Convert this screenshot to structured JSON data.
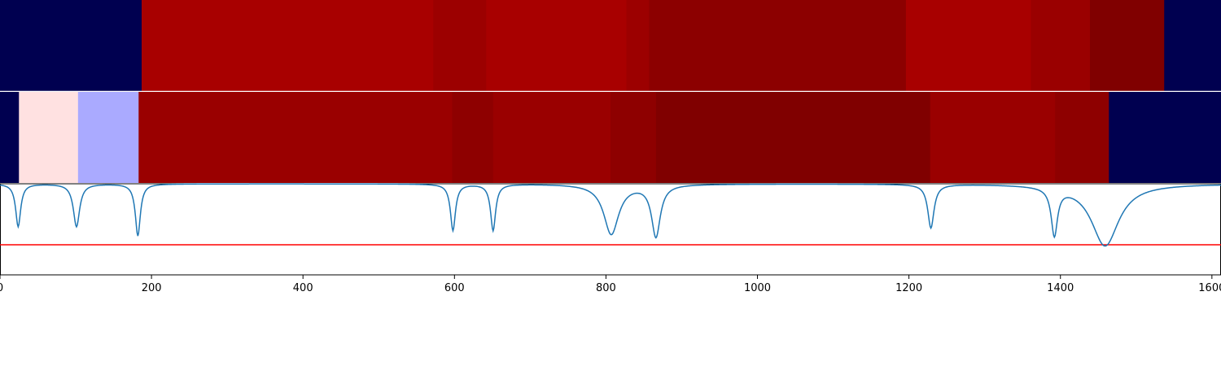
{
  "chart_data": {
    "type": "heatmap",
    "x_range": [
      0,
      1612
    ],
    "x_ticks": [
      0,
      200,
      400,
      600,
      800,
      1000,
      1200,
      1400,
      1600
    ],
    "x_tick_labels": [
      "0",
      "200",
      "400",
      "600",
      "800",
      "1000",
      "1200",
      "1400",
      "1600"
    ],
    "tracks": [
      {
        "name": "segments-top",
        "segments": [
          {
            "start": 0,
            "end": 187,
            "color": "#000050"
          },
          {
            "start": 187,
            "end": 572,
            "color": "#a80000"
          },
          {
            "start": 572,
            "end": 642,
            "color": "#9c0000"
          },
          {
            "start": 642,
            "end": 827,
            "color": "#a80000"
          },
          {
            "start": 827,
            "end": 857,
            "color": "#9c0000"
          },
          {
            "start": 857,
            "end": 1196,
            "color": "#8c0000"
          },
          {
            "start": 1196,
            "end": 1361,
            "color": "#a80000"
          },
          {
            "start": 1361,
            "end": 1439,
            "color": "#9a0000"
          },
          {
            "start": 1439,
            "end": 1537,
            "color": "#800000"
          },
          {
            "start": 1537,
            "end": 1612,
            "color": "#000050"
          }
        ]
      },
      {
        "name": "segments-bottom",
        "segments": [
          {
            "start": 0,
            "end": 25,
            "color": "#000050"
          },
          {
            "start": 25,
            "end": 103,
            "color": "#ffe1e1"
          },
          {
            "start": 103,
            "end": 183,
            "color": "#aaaaff"
          },
          {
            "start": 183,
            "end": 597,
            "color": "#9a0000"
          },
          {
            "start": 597,
            "end": 651,
            "color": "#8e0000"
          },
          {
            "start": 651,
            "end": 806,
            "color": "#9a0000"
          },
          {
            "start": 806,
            "end": 866,
            "color": "#8e0000"
          },
          {
            "start": 866,
            "end": 1228,
            "color": "#800000"
          },
          {
            "start": 1228,
            "end": 1393,
            "color": "#9a0000"
          },
          {
            "start": 1393,
            "end": 1464,
            "color": "#8e0000"
          },
          {
            "start": 1464,
            "end": 1612,
            "color": "#000050"
          }
        ]
      }
    ],
    "line": {
      "color": "#1f77b4",
      "y_range": [
        0,
        1
      ],
      "baseline": 1.0,
      "dips": [
        {
          "center": 24,
          "depth": 0.47,
          "width": 4
        },
        {
          "center": 101,
          "depth": 0.47,
          "width": 5
        },
        {
          "center": 182,
          "depth": 0.57,
          "width": 4
        },
        {
          "center": 598,
          "depth": 0.51,
          "width": 4
        },
        {
          "center": 651,
          "depth": 0.51,
          "width": 4
        },
        {
          "center": 807,
          "depth": 0.55,
          "width": 12
        },
        {
          "center": 866,
          "depth": 0.57,
          "width": 7
        },
        {
          "center": 1229,
          "depth": 0.48,
          "width": 5
        },
        {
          "center": 1392,
          "depth": 0.52,
          "width": 5
        },
        {
          "center": 1459,
          "depth": 0.68,
          "width": 22
        }
      ],
      "threshold": 0.33,
      "threshold_color": "#ff0000"
    }
  }
}
